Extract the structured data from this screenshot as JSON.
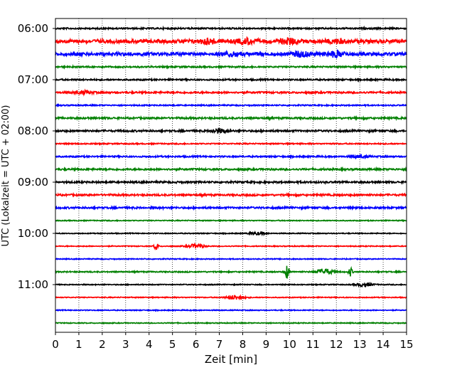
{
  "chart_data": {
    "type": "line",
    "xlabel": "Zeit  [min]",
    "ylabel": "UTC (Lokalzeit = UTC + 02:00)",
    "xlim": [
      0,
      15
    ],
    "x_ticks": [
      "0",
      "1",
      "2",
      "3",
      "4",
      "5",
      "6",
      "7",
      "8",
      "9",
      "10",
      "11",
      "12",
      "13",
      "14",
      "15"
    ],
    "y_tick_labels": [
      "06:00",
      "07:00",
      "08:00",
      "09:00",
      "10:00",
      "11:00"
    ],
    "grid": "vertical dotted",
    "trace_interval_min": 15,
    "colors": [
      "#000000",
      "#ff0000",
      "#0000ff",
      "#008000"
    ],
    "traces": [
      {
        "time": "06:00",
        "color": "#000000",
        "events": [],
        "level": 0.5
      },
      {
        "time": "06:15",
        "color": "#ff0000",
        "events": [
          {
            "x": 6.5,
            "amp": 1.5
          },
          {
            "x": 8.2,
            "amp": 1.6
          },
          {
            "x": 10.0,
            "amp": 1.8
          },
          {
            "x": 12.0,
            "amp": 1.2
          }
        ],
        "level": 1.2
      },
      {
        "time": "06:30",
        "color": "#0000ff",
        "events": [
          {
            "x": 7.5,
            "amp": 1.3
          },
          {
            "x": 10.5,
            "amp": 1.6
          },
          {
            "x": 12.0,
            "amp": 1.7
          }
        ],
        "level": 1.1
      },
      {
        "time": "06:45",
        "color": "#008000",
        "events": [],
        "level": 0.5
      },
      {
        "time": "07:00",
        "color": "#000000",
        "events": [],
        "level": 0.5
      },
      {
        "time": "07:15",
        "color": "#ff0000",
        "events": [
          {
            "x": 1.2,
            "amp": 1.0
          }
        ],
        "level": 0.6
      },
      {
        "time": "07:30",
        "color": "#0000ff",
        "events": [],
        "level": 0.4
      },
      {
        "time": "07:45",
        "color": "#008000",
        "events": [],
        "level": 0.6
      },
      {
        "time": "08:00",
        "color": "#000000",
        "events": [
          {
            "x": 7.0,
            "amp": 1.5
          }
        ],
        "level": 0.6
      },
      {
        "time": "08:15",
        "color": "#ff0000",
        "events": [],
        "level": 0.4
      },
      {
        "time": "08:30",
        "color": "#0000ff",
        "events": [
          {
            "x": 13.0,
            "amp": 0.8
          }
        ],
        "level": 0.5
      },
      {
        "time": "08:45",
        "color": "#008000",
        "events": [],
        "level": 0.6
      },
      {
        "time": "09:00",
        "color": "#000000",
        "events": [],
        "level": 0.6
      },
      {
        "time": "09:15",
        "color": "#ff0000",
        "events": [],
        "level": 0.6
      },
      {
        "time": "09:30",
        "color": "#0000ff",
        "events": [],
        "level": 0.6
      },
      {
        "time": "09:45",
        "color": "#008000",
        "events": [],
        "level": 0.3
      },
      {
        "time": "10:00",
        "color": "#000000",
        "events": [
          {
            "x": 8.6,
            "amp": 0.9
          }
        ],
        "level": 0.3
      },
      {
        "time": "10:15",
        "color": "#ff0000",
        "events": [
          {
            "x": 4.3,
            "amp": 2.8
          },
          {
            "x": 6.0,
            "amp": 1.4
          }
        ],
        "level": 0.3
      },
      {
        "time": "10:30",
        "color": "#0000ff",
        "events": [],
        "level": 0.3
      },
      {
        "time": "10:45",
        "color": "#008000",
        "events": [
          {
            "x": 9.9,
            "amp": 5.0
          },
          {
            "x": 11.5,
            "amp": 2.0
          },
          {
            "x": 12.6,
            "amp": 3.0
          }
        ],
        "level": 0.4
      },
      {
        "time": "11:00",
        "color": "#000000",
        "events": [
          {
            "x": 13.2,
            "amp": 1.2
          }
        ],
        "level": 0.3
      },
      {
        "time": "11:15",
        "color": "#ff0000",
        "events": [
          {
            "x": 7.7,
            "amp": 1.5
          }
        ],
        "level": 0.3
      },
      {
        "time": "11:30",
        "color": "#0000ff",
        "events": [],
        "level": 0.3
      },
      {
        "time": "11:45",
        "color": "#008000",
        "events": [],
        "level": 0.3
      }
    ]
  }
}
